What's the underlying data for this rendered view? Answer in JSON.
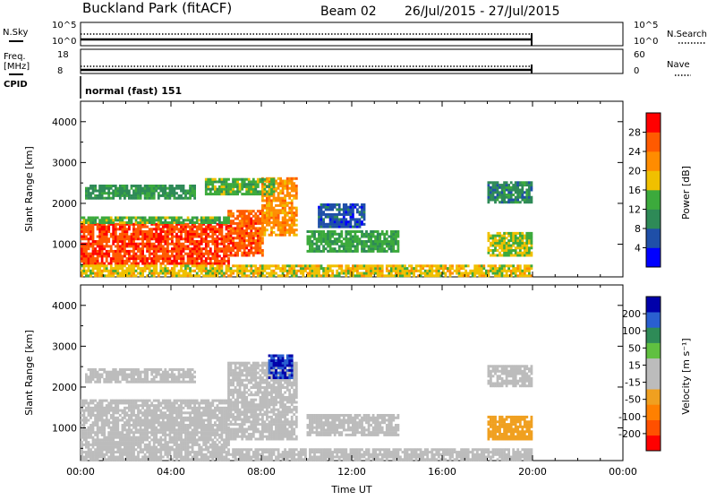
{
  "header": {
    "station": "Buckland Park (fitACF)",
    "beam": "Beam 02",
    "date_range": "26/Jul/2015 - 27/Jul/2015"
  },
  "top_panels": {
    "nsky": {
      "label": "N.Sky",
      "ticks": [
        "10^5",
        "10^0"
      ]
    },
    "nsearch": {
      "label": "N.Search",
      "ticks": [
        "10^5",
        "10^0"
      ]
    },
    "freq": {
      "label_line1": "Freq.",
      "label_line2": "[MHz]",
      "ticks": [
        "18",
        "8"
      ]
    },
    "nave": {
      "label": "Nave",
      "ticks": [
        "60",
        "0"
      ]
    },
    "cpid": {
      "label": "CPID",
      "value": "normal (fast) 151"
    }
  },
  "colors": {
    "power_scale": [
      "#0000ff",
      "#1f4fa8",
      "#2e8a57",
      "#3caa3c",
      "#f0c000",
      "#ff8c00",
      "#ff5a00",
      "#ff0000"
    ],
    "velocity_scale": [
      "#0000aa",
      "#2a5fd0",
      "#2e8b57",
      "#60c040",
      "#bcbcbc",
      "#bcbcbc",
      "#f0a020",
      "#ff8000",
      "#ff5000",
      "#ff0000"
    ]
  },
  "chart_data": [
    {
      "type": "heatmap",
      "name": "power",
      "ylabel": "Slant Range [km]",
      "yticks": [
        "1000",
        "2000",
        "3000",
        "4000"
      ],
      "ylim": [
        200,
        4500
      ],
      "xlim": [
        0,
        24
      ],
      "colorbar": {
        "label": "Power [dB]",
        "ticks": [
          "4",
          "8",
          "12",
          "16",
          "20",
          "24",
          "28"
        ],
        "range": [
          0,
          32
        ]
      },
      "regions": [
        {
          "t0": 0.0,
          "t1": 6.5,
          "r0": 500,
          "r1": 1500,
          "value": 27
        },
        {
          "t0": 6.5,
          "t1": 8.0,
          "r0": 700,
          "r1": 1800,
          "value": 26
        },
        {
          "t0": 8.0,
          "t1": 9.5,
          "r0": 1200,
          "r1": 2600,
          "value": 22
        },
        {
          "t0": 0.0,
          "t1": 6.5,
          "r0": 1500,
          "r1": 1650,
          "value": 14
        },
        {
          "t0": 0.2,
          "t1": 5.0,
          "r0": 2100,
          "r1": 2450,
          "value": 11
        },
        {
          "t0": 5.5,
          "t1": 8.5,
          "r0": 2200,
          "r1": 2600,
          "value": 14
        },
        {
          "t0": 10.0,
          "t1": 14.0,
          "r0": 800,
          "r1": 1300,
          "value": 13
        },
        {
          "t0": 10.5,
          "t1": 12.5,
          "r0": 1400,
          "r1": 2000,
          "value": 6
        },
        {
          "t0": 18.0,
          "t1": 20.0,
          "r0": 700,
          "r1": 1300,
          "value": 16
        },
        {
          "t0": 18.0,
          "t1": 20.0,
          "r0": 2000,
          "r1": 2500,
          "value": 10
        },
        {
          "t0": 0.0,
          "t1": 20.0,
          "r0": 200,
          "r1": 450,
          "value": 18
        }
      ]
    },
    {
      "type": "heatmap",
      "name": "velocity",
      "ylabel": "Slant Range [km]",
      "yticks": [
        "1000",
        "2000",
        "3000",
        "4000"
      ],
      "ylim": [
        200,
        4500
      ],
      "xlim": [
        0,
        24
      ],
      "xlabel": "Time UT",
      "xticks": [
        "00:00",
        "04:00",
        "08:00",
        "12:00",
        "16:00",
        "20:00",
        "00:00"
      ],
      "colorbar": {
        "label": "Velocity [m s⁻¹]",
        "ticks": [
          "200",
          "100",
          "50",
          "15",
          "-15",
          "-50",
          "-100",
          "-200"
        ],
        "range": [
          -250,
          250
        ]
      },
      "regions": [
        {
          "t0": 0.0,
          "t1": 6.5,
          "r0": 500,
          "r1": 1700,
          "value": 0
        },
        {
          "t0": 6.5,
          "t1": 9.5,
          "r0": 700,
          "r1": 2600,
          "value": 0
        },
        {
          "t0": 0.2,
          "t1": 5.0,
          "r0": 2100,
          "r1": 2450,
          "value": 0
        },
        {
          "t0": 8.3,
          "t1": 9.3,
          "r0": 2200,
          "r1": 2800,
          "value": 200
        },
        {
          "t0": 10.0,
          "t1": 14.0,
          "r0": 800,
          "r1": 1300,
          "value": 5
        },
        {
          "t0": 18.0,
          "t1": 20.0,
          "r0": 700,
          "r1": 1300,
          "value": -60
        },
        {
          "t0": 18.0,
          "t1": 20.0,
          "r0": 2000,
          "r1": 2500,
          "value": 0
        },
        {
          "t0": 0.0,
          "t1": 20.0,
          "r0": 200,
          "r1": 450,
          "value": -40
        }
      ]
    }
  ]
}
